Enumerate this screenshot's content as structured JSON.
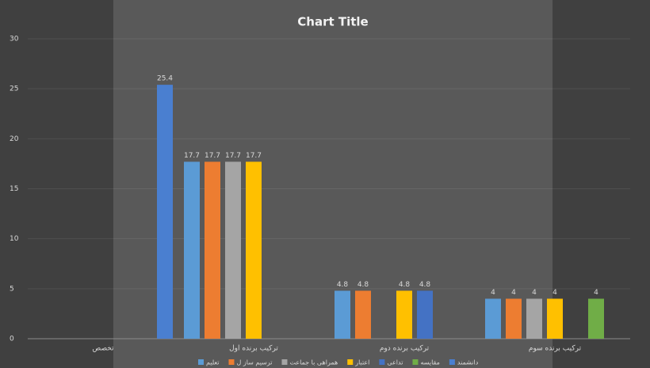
{
  "chart_data": {
    "type": "bar",
    "title": "Chart Title",
    "categories": [
      "تخصص",
      "ترکیب برنده اول",
      "ترکیب برنده دوم",
      "ترکیب برنده سوم"
    ],
    "series": [
      {
        "name": "تعلیم",
        "color": "#5b9bd5",
        "values": [
          null,
          17.7,
          4.8,
          4
        ]
      },
      {
        "name": "ترسیم ساز ل",
        "color": "#ed7d31",
        "values": [
          null,
          17.7,
          4.8,
          4
        ]
      },
      {
        "name": "همراهی با جماعت",
        "color": "#a5a5a5",
        "values": [
          null,
          17.7,
          null,
          4
        ]
      },
      {
        "name": "اعتبار",
        "color": "#ffc000",
        "values": [
          null,
          17.7,
          4.8,
          4
        ]
      },
      {
        "name": "تداعی",
        "color": "#4472c4",
        "values": [
          null,
          null,
          4.8,
          null
        ]
      },
      {
        "name": "مقایسه",
        "color": "#70ad47",
        "values": [
          null,
          null,
          null,
          4
        ]
      },
      {
        "name": "دانشمند",
        "color": "#4a7fd0",
        "values": [
          25.4,
          null,
          null,
          null
        ]
      }
    ],
    "ylim": [
      0,
      30
    ],
    "yticks": [
      0,
      5,
      10,
      15,
      20,
      25,
      30
    ],
    "grid": true
  }
}
